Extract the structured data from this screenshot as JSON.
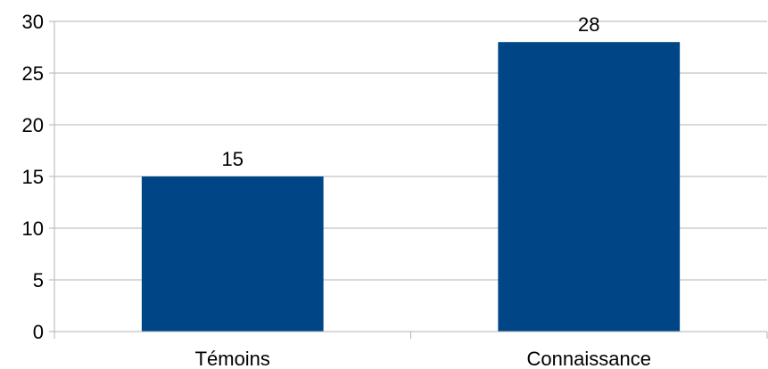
{
  "chart_data": {
    "type": "bar",
    "categories": [
      "Témoins",
      "Connaissance"
    ],
    "values": [
      15,
      28
    ],
    "data_labels": [
      "15",
      "28"
    ],
    "title": "",
    "xlabel": "",
    "ylabel": "",
    "ylim": [
      0,
      30
    ],
    "yticks": [
      0,
      5,
      10,
      15,
      20,
      25,
      30
    ],
    "grid": true,
    "legend": "none",
    "bar_color": "#004586"
  }
}
